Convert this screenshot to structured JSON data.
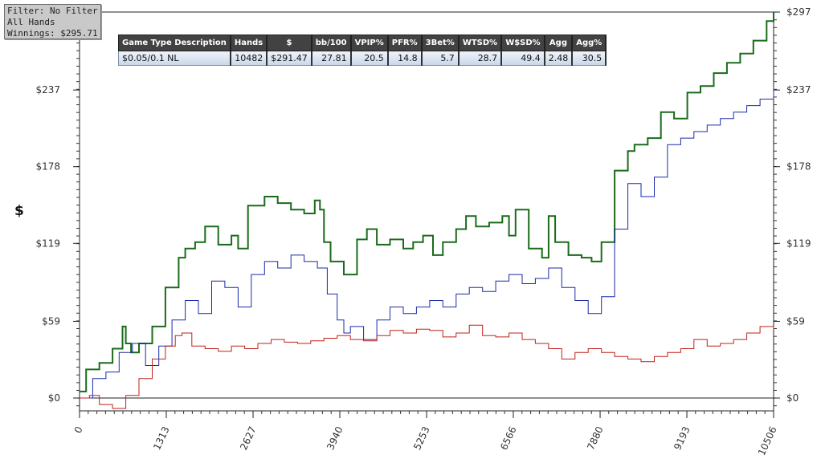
{
  "filter_box": {
    "line1": "Filter: No Filter",
    "line2": "All Hands",
    "line3": "Winnings: $295.71"
  },
  "stats_table": {
    "headers": [
      "Game Type Description",
      "Hands",
      "$",
      "bb/100",
      "VPIP%",
      "PFR%",
      "3Bet%",
      "WTSD%",
      "W$SD%",
      "Agg",
      "Agg%"
    ],
    "row": [
      "$0.05/0.1 NL",
      "10482",
      "$291.47",
      "27.81",
      "20.5",
      "14.8",
      "5.7",
      "28.7",
      "49.4",
      "2.48",
      "30.5"
    ]
  },
  "chart_data": {
    "type": "line",
    "ylabel": "$",
    "xlim": [
      0,
      10506
    ],
    "ylim": [
      -10,
      297
    ],
    "x_ticks": [
      "0",
      "1313",
      "2627",
      "3940",
      "5253",
      "6566",
      "7880",
      "9193",
      "10506"
    ],
    "y_ticks": [
      "$0",
      "$59",
      "$119",
      "$178",
      "$237",
      "$297"
    ],
    "y_tick_values": [
      0,
      59,
      119,
      178,
      237,
      297
    ],
    "grid": false,
    "series": [
      {
        "color": "#1a6b1a",
        "x": [
          0,
          100,
          300,
          500,
          650,
          700,
          780,
          900,
          1100,
          1300,
          1500,
          1600,
          1750,
          1900,
          2100,
          2300,
          2400,
          2550,
          2800,
          3000,
          3200,
          3400,
          3560,
          3640,
          3700,
          3800,
          4000,
          4200,
          4350,
          4500,
          4700,
          4900,
          5050,
          5200,
          5350,
          5500,
          5700,
          5850,
          6000,
          6200,
          6400,
          6500,
          6600,
          6800,
          7000,
          7100,
          7200,
          7400,
          7600,
          7750,
          7900,
          8100,
          8300,
          8400,
          8600,
          8800,
          9000,
          9200,
          9400,
          9600,
          9800,
          10000,
          10200,
          10400,
          10506
        ],
        "y": [
          5,
          22,
          27,
          38,
          55,
          42,
          35,
          42,
          55,
          85,
          108,
          115,
          120,
          132,
          118,
          125,
          115,
          148,
          155,
          150,
          145,
          142,
          152,
          145,
          120,
          105,
          95,
          122,
          130,
          118,
          122,
          115,
          120,
          125,
          110,
          120,
          130,
          140,
          132,
          135,
          140,
          125,
          145,
          115,
          108,
          140,
          120,
          110,
          108,
          105,
          120,
          175,
          190,
          195,
          200,
          220,
          215,
          235,
          240,
          250,
          258,
          265,
          275,
          290,
          297
        ]
      },
      {
        "color": "#1a2aa8",
        "x": [
          0,
          200,
          400,
          600,
          800,
          1000,
          1200,
          1400,
          1600,
          1800,
          2000,
          2200,
          2400,
          2600,
          2800,
          3000,
          3200,
          3400,
          3600,
          3750,
          3900,
          4000,
          4100,
          4300,
          4500,
          4700,
          4900,
          5100,
          5300,
          5500,
          5700,
          5900,
          6100,
          6300,
          6500,
          6700,
          6900,
          7100,
          7300,
          7500,
          7700,
          7900,
          8100,
          8300,
          8500,
          8700,
          8900,
          9100,
          9300,
          9500,
          9700,
          9900,
          10100,
          10300,
          10506
        ],
        "y": [
          0,
          15,
          20,
          35,
          42,
          25,
          40,
          60,
          75,
          65,
          90,
          85,
          70,
          95,
          105,
          100,
          110,
          105,
          100,
          80,
          60,
          50,
          55,
          45,
          60,
          70,
          65,
          70,
          75,
          70,
          80,
          85,
          82,
          90,
          95,
          88,
          92,
          100,
          85,
          75,
          65,
          78,
          130,
          165,
          155,
          170,
          195,
          200,
          205,
          210,
          215,
          220,
          225,
          230,
          240
        ]
      },
      {
        "color": "#c0201a",
        "x": [
          0,
          150,
          300,
          500,
          700,
          900,
          1100,
          1300,
          1450,
          1550,
          1700,
          1900,
          2100,
          2300,
          2500,
          2700,
          2900,
          3100,
          3300,
          3500,
          3700,
          3900,
          4100,
          4300,
          4500,
          4700,
          4900,
          5100,
          5300,
          5500,
          5700,
          5900,
          6100,
          6300,
          6500,
          6700,
          6900,
          7100,
          7300,
          7500,
          7700,
          7900,
          8100,
          8300,
          8500,
          8700,
          8900,
          9100,
          9300,
          9500,
          9700,
          9900,
          10100,
          10300,
          10506
        ],
        "y": [
          0,
          2,
          -5,
          -8,
          2,
          15,
          30,
          40,
          48,
          50,
          40,
          38,
          36,
          40,
          38,
          42,
          45,
          43,
          42,
          44,
          46,
          48,
          45,
          44,
          48,
          52,
          50,
          53,
          52,
          47,
          50,
          56,
          48,
          47,
          50,
          45,
          42,
          38,
          30,
          35,
          38,
          35,
          32,
          30,
          28,
          32,
          35,
          38,
          45,
          40,
          42,
          45,
          50,
          55,
          53
        ]
      }
    ]
  }
}
